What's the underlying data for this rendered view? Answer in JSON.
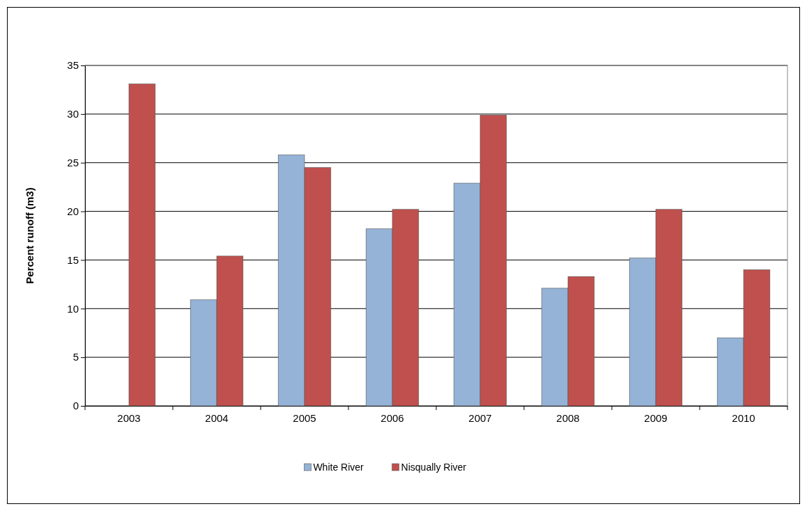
{
  "chart_data": {
    "type": "bar",
    "ylabel": "Percent runoff (m3)",
    "categories": [
      "2003",
      "2004",
      "2005",
      "2006",
      "2007",
      "2008",
      "2009",
      "2010"
    ],
    "series": [
      {
        "name": "White River",
        "color": "#95b3d7",
        "values": [
          null,
          10.9,
          25.8,
          18.2,
          22.9,
          12.1,
          15.2,
          7.0
        ]
      },
      {
        "name": "Nisqually River",
        "color": "#c0504d",
        "values": [
          33.1,
          15.4,
          24.5,
          20.2,
          29.9,
          13.3,
          20.2,
          14.0
        ]
      }
    ],
    "ylim": [
      0,
      35
    ],
    "yticks": [
      0,
      5,
      10,
      15,
      20,
      25,
      30,
      35
    ],
    "grid": "y",
    "legend": "bottom"
  }
}
